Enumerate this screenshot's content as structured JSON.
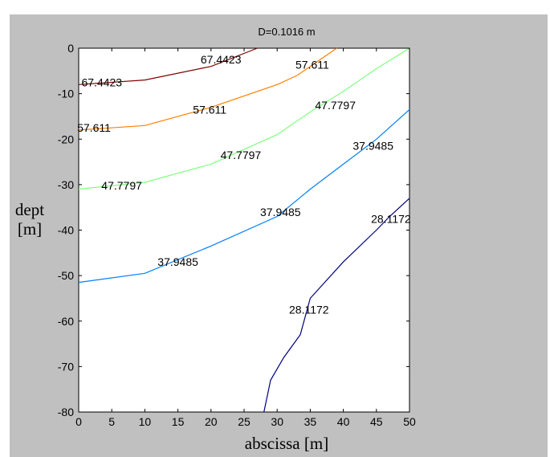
{
  "chart_data": {
    "type": "contour",
    "title": "D=0.1016 m",
    "xlabel": "abscissa [m]",
    "ylabel": "dept\n[m]",
    "xlim": [
      0,
      50
    ],
    "ylim": [
      -80,
      0
    ],
    "xticks": [
      0,
      5,
      10,
      15,
      20,
      25,
      30,
      35,
      40,
      45,
      50
    ],
    "yticks": [
      0,
      -10,
      -20,
      -30,
      -40,
      -50,
      -60,
      -70,
      -80
    ],
    "grid": false,
    "background": "#c0c0c0",
    "series": [
      {
        "level": "67.4423",
        "color": "#800000",
        "points": [
          [
            0,
            -8
          ],
          [
            10,
            -7
          ],
          [
            20,
            -4
          ],
          [
            27,
            0
          ]
        ],
        "labels": [
          {
            "text": "67.4423",
            "x": 3.5,
            "y": -7.5
          },
          {
            "text": "67.4423",
            "x": 21.5,
            "y": -2.5
          }
        ]
      },
      {
        "level": "57.611",
        "color": "#ff8000",
        "points": [
          [
            0,
            -18
          ],
          [
            10,
            -17
          ],
          [
            20,
            -13
          ],
          [
            30,
            -8
          ],
          [
            33,
            -6
          ],
          [
            39,
            0
          ]
        ],
        "labels": [
          {
            "text": "57.611",
            "x": 2.3,
            "y": -17.5
          },
          {
            "text": "57.611",
            "x": 19.8,
            "y": -13.5
          },
          {
            "text": "57.611",
            "x": 35.3,
            "y": -3.6
          }
        ]
      },
      {
        "level": "47.7797",
        "color": "#80ff80",
        "points": [
          [
            0,
            -31
          ],
          [
            10,
            -29.5
          ],
          [
            20,
            -25.5
          ],
          [
            30,
            -19
          ],
          [
            35,
            -14
          ],
          [
            40,
            -9.5
          ],
          [
            45,
            -4.5
          ],
          [
            50,
            0
          ]
        ],
        "labels": [
          {
            "text": "47.7797",
            "x": 6.5,
            "y": -30.2
          },
          {
            "text": "47.7797",
            "x": 24.5,
            "y": -23.5
          },
          {
            "text": "47.7797",
            "x": 38.8,
            "y": -12.5
          }
        ]
      },
      {
        "level": "37.9485",
        "color": "#0080ff",
        "points": [
          [
            0,
            -51.5
          ],
          [
            10,
            -49.5
          ],
          [
            20,
            -43.5
          ],
          [
            30,
            -37
          ],
          [
            35,
            -31
          ],
          [
            40,
            -25.5
          ],
          [
            45,
            -20
          ],
          [
            50,
            -13.5
          ]
        ],
        "labels": [
          {
            "text": "37.9485",
            "x": 15,
            "y": -47
          },
          {
            "text": "37.9485",
            "x": 30.5,
            "y": -36
          },
          {
            "text": "37.9485",
            "x": 44.5,
            "y": -21.5
          }
        ]
      },
      {
        "level": "28.1172",
        "color": "#000080",
        "points": [
          [
            28,
            -80
          ],
          [
            29,
            -73
          ],
          [
            31,
            -68
          ],
          [
            33.5,
            -63
          ],
          [
            35,
            -55
          ],
          [
            40,
            -47
          ],
          [
            45,
            -40
          ],
          [
            47,
            -37
          ],
          [
            50,
            -33
          ]
        ],
        "labels": [
          {
            "text": "28.1172",
            "x": 34.8,
            "y": -57.5
          },
          {
            "text": "28.1172",
            "x": 47.2,
            "y": -37.5
          }
        ]
      }
    ]
  }
}
